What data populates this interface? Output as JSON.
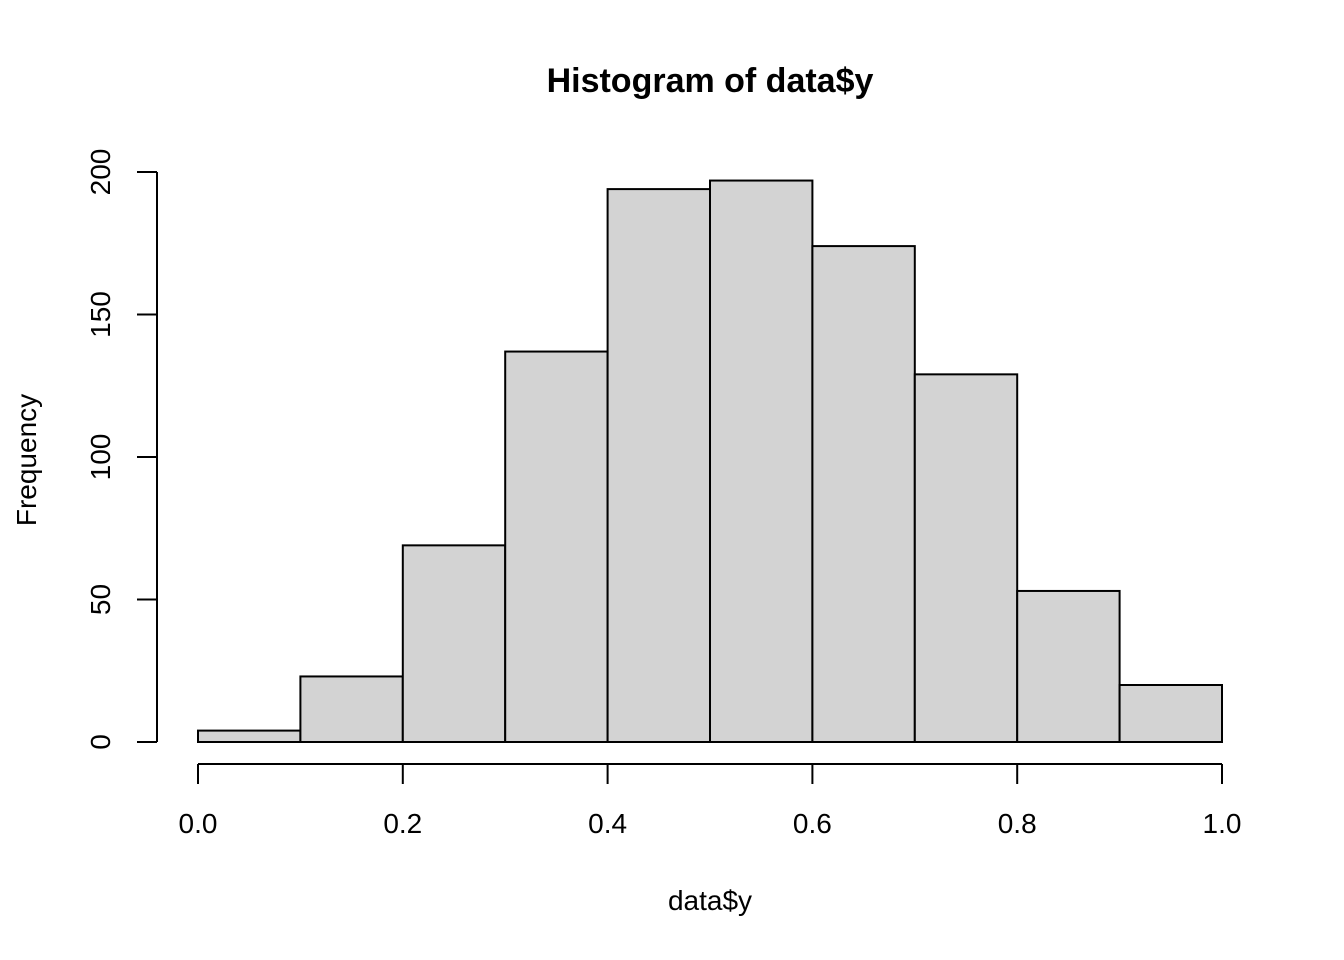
{
  "chart_data": {
    "type": "bar",
    "subtype": "histogram",
    "title": "Histogram of data$y",
    "xlabel": "data$y",
    "ylabel": "Frequency",
    "bin_edges": [
      0.0,
      0.1,
      0.2,
      0.3,
      0.4,
      0.5,
      0.6,
      0.7,
      0.8,
      0.9,
      1.0
    ],
    "values": [
      4,
      23,
      69,
      137,
      194,
      197,
      174,
      129,
      53,
      20
    ],
    "xlim": [
      0.0,
      1.0
    ],
    "ylim": [
      0,
      200
    ],
    "x_ticks": [
      0.0,
      0.2,
      0.4,
      0.6,
      0.8,
      1.0
    ],
    "x_tick_labels": [
      "0.0",
      "0.2",
      "0.4",
      "0.6",
      "0.8",
      "1.0"
    ],
    "y_ticks": [
      0,
      50,
      100,
      150,
      200
    ],
    "y_tick_labels": [
      "0",
      "50",
      "100",
      "150",
      "200"
    ],
    "grid": false,
    "legend": "none",
    "bar_fill_color": "#d3d3d3",
    "bar_border_color": "#000000"
  }
}
